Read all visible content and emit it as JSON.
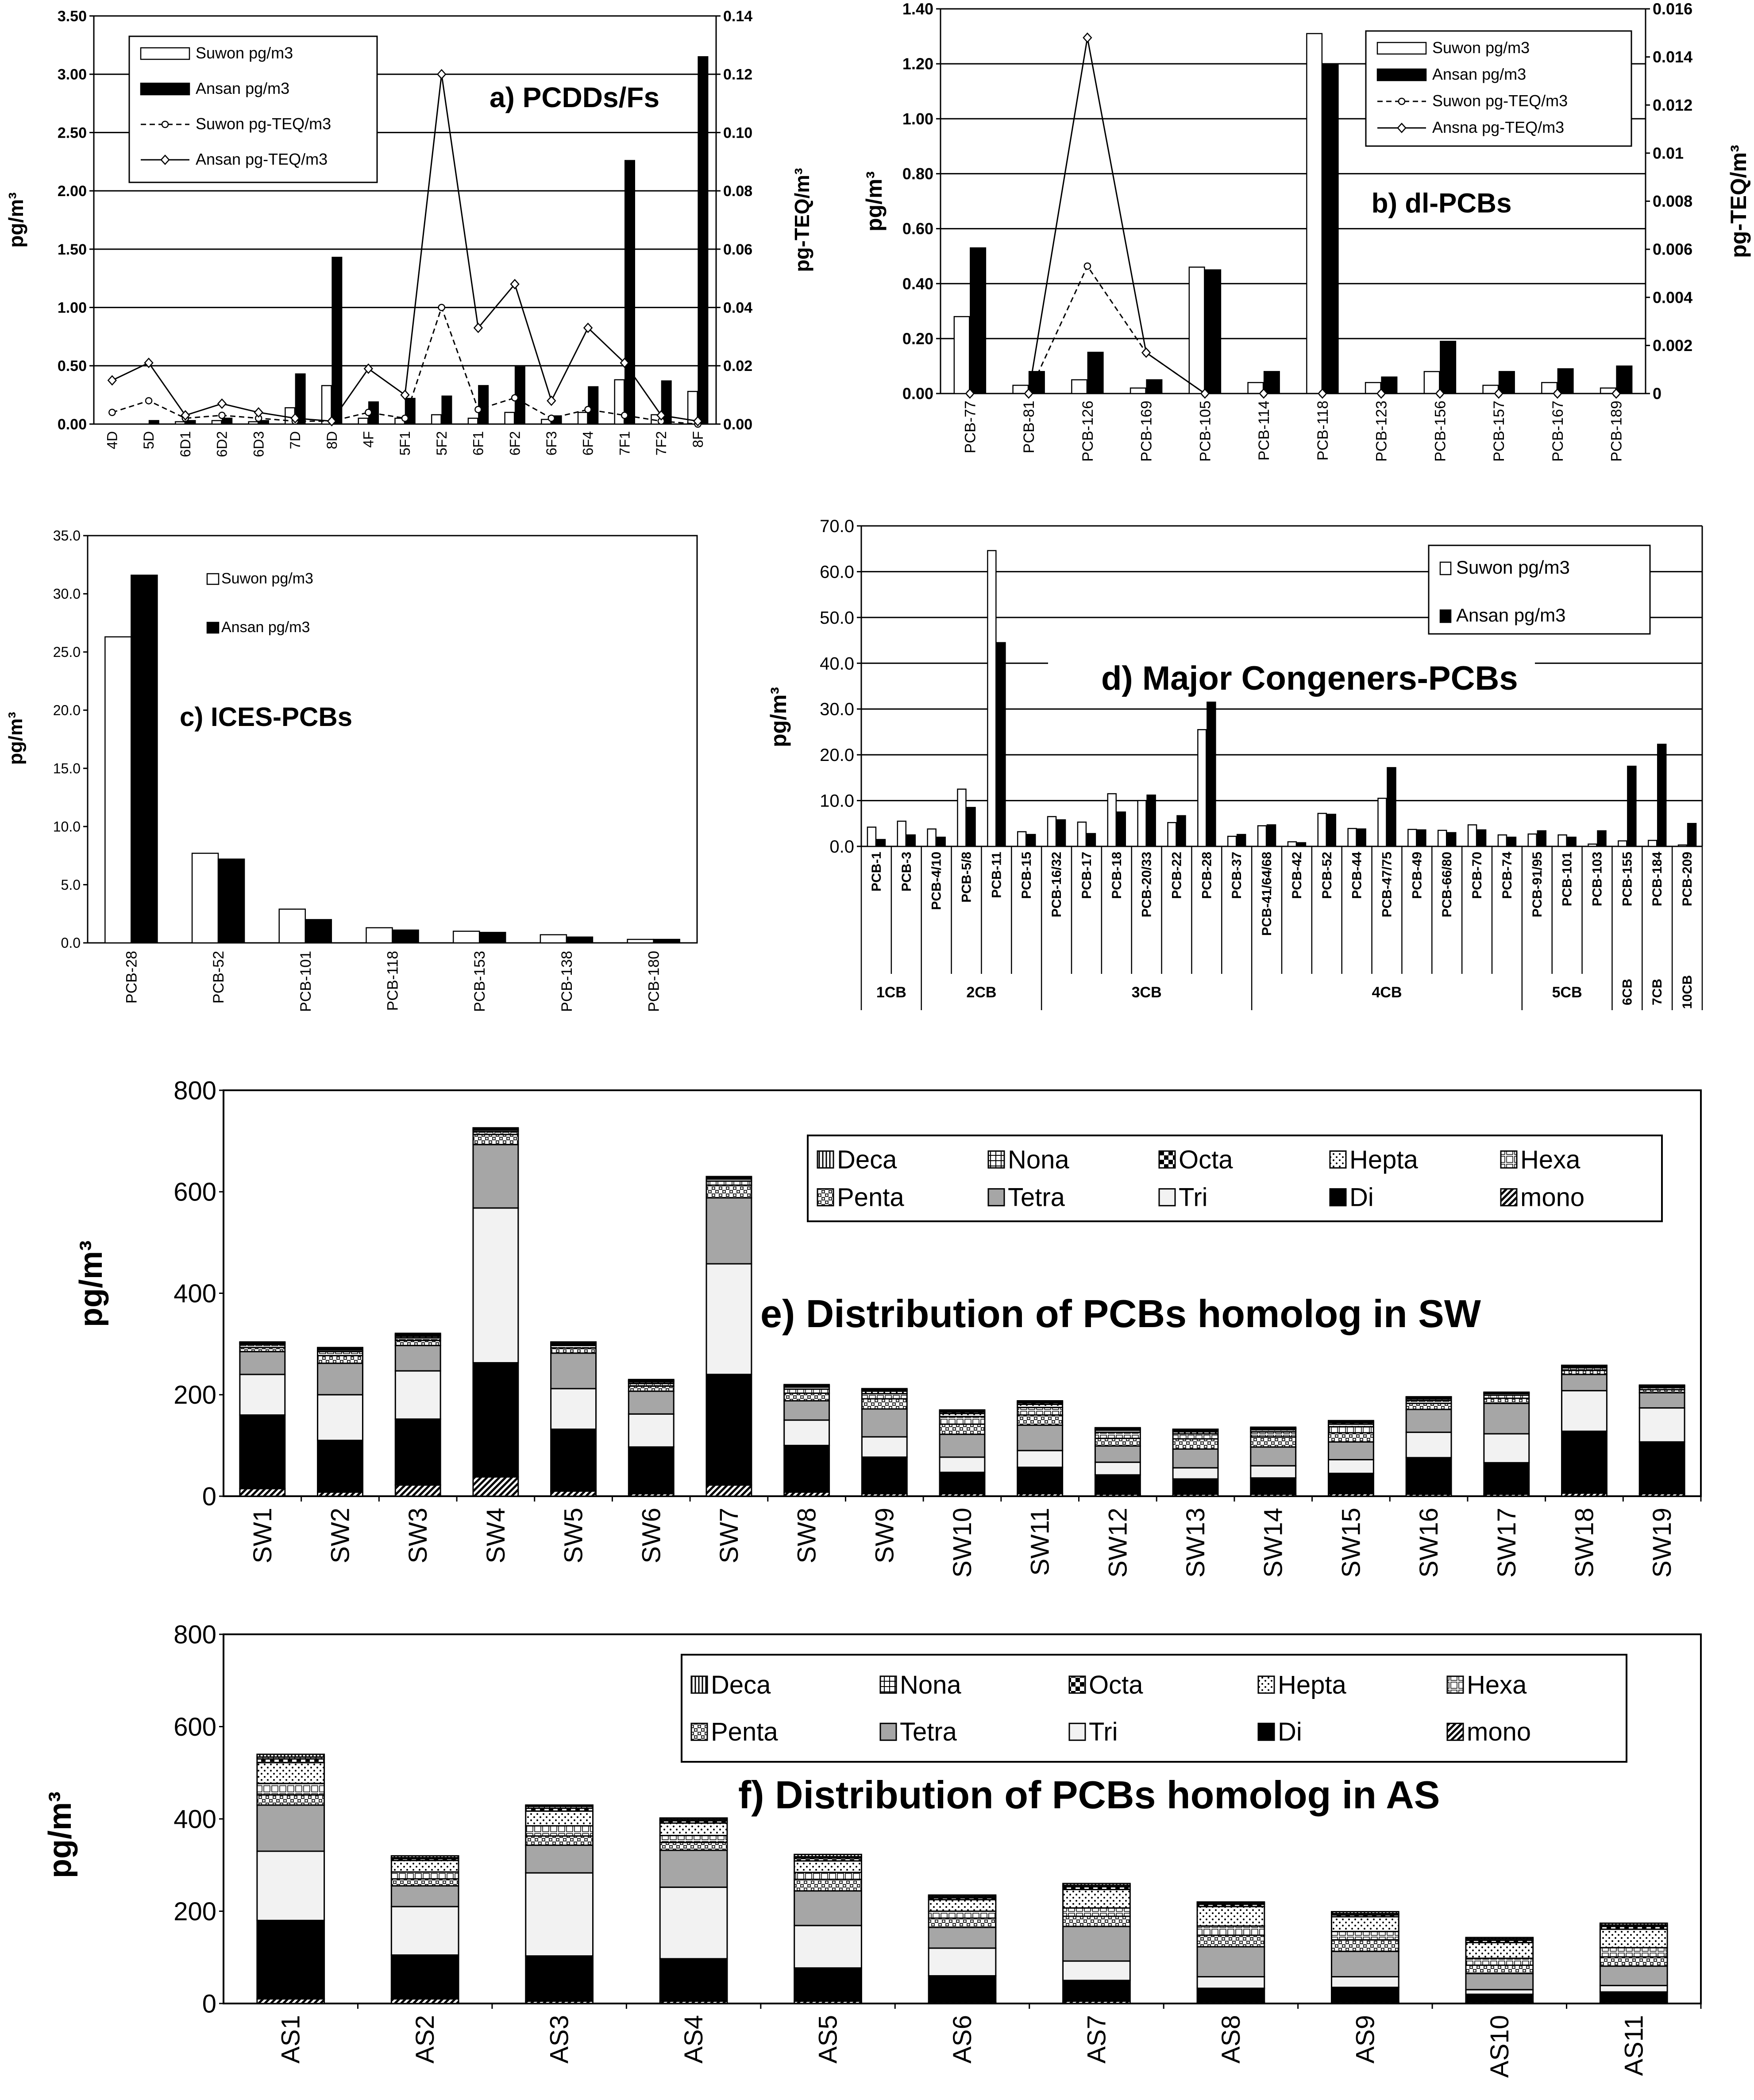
{
  "figure": {
    "panel_count": 6
  },
  "chart_data": [
    {
      "id": "a",
      "type": "bar",
      "title": "a) PCDDs/Fs",
      "categories": [
        "4D",
        "5D",
        "6D1",
        "6D2",
        "6D3",
        "7D",
        "8D",
        "4F",
        "5F1",
        "5F2",
        "6F1",
        "6F2",
        "6F3",
        "6F4",
        "7F1",
        "7F2",
        "8F"
      ],
      "series": [
        {
          "name": "Suwon pg/m3",
          "kind": "bar",
          "axis": "left",
          "values": [
            0,
            0,
            0.02,
            0.03,
            0.02,
            0.14,
            0.33,
            0.05,
            0.05,
            0.08,
            0.05,
            0.1,
            0.04,
            0.1,
            0.38,
            0.08,
            0.28
          ]
        },
        {
          "name": "Ansan pg/m3",
          "kind": "bar",
          "axis": "left",
          "values": [
            0,
            0.03,
            0.03,
            0.05,
            0.03,
            0.43,
            1.43,
            0.19,
            0.22,
            0.24,
            0.33,
            0.49,
            0.07,
            0.32,
            2.26,
            0.37,
            3.15
          ]
        },
        {
          "name": "Suwon pg-TEQ/m3",
          "kind": "line",
          "dash": true,
          "axis": "right",
          "values": [
            0.004,
            0.008,
            0.002,
            0.003,
            0.002,
            0.001,
            0.001,
            0.004,
            0.002,
            0.04,
            0.005,
            0.009,
            0.002,
            0.005,
            0.003,
            0.001,
            0.0
          ]
        },
        {
          "name": "Ansan pg-TEQ/m3",
          "kind": "line",
          "dash": false,
          "axis": "right",
          "values": [
            0.015,
            0.021,
            0.003,
            0.007,
            0.004,
            0.002,
            0.001,
            0.019,
            0.01,
            0.12,
            0.033,
            0.048,
            0.008,
            0.033,
            0.021,
            0.003,
            0.001
          ]
        }
      ],
      "ylabel": "pg/m³",
      "y2label": "pg-TEQ/m³",
      "ylim": [
        0,
        3.5
      ],
      "yticks": [
        0,
        0.5,
        1.0,
        1.5,
        2.0,
        2.5,
        3.0,
        3.5
      ],
      "ytick_labels": [
        "0.00",
        "0.50",
        "1.00",
        "1.50",
        "2.00",
        "2.50",
        "3.00",
        "3.50"
      ],
      "y2lim": [
        0,
        0.14
      ],
      "y2ticks": [
        0,
        0.02,
        0.04,
        0.06,
        0.08,
        0.1,
        0.12,
        0.14
      ],
      "y2tick_labels": [
        "0.00",
        "0.02",
        "0.04",
        "0.06",
        "0.08",
        "0.10",
        "0.12",
        "0.14"
      ],
      "legend": "top-left"
    },
    {
      "id": "b",
      "type": "bar",
      "title": "b) dl-PCBs",
      "categories": [
        "PCB-77",
        "PCB-81",
        "PCB-126",
        "PCB-169",
        "PCB-105",
        "PCB-114",
        "PCB-118",
        "PCB-123",
        "PCB-156",
        "PCB-157",
        "PCB-167",
        "PCB-189"
      ],
      "series": [
        {
          "name": "Suwon pg/m3",
          "kind": "bar",
          "axis": "left",
          "values": [
            0.28,
            0.03,
            0.05,
            0.02,
            0.46,
            0.04,
            1.31,
            0.04,
            0.08,
            0.03,
            0.04,
            0.02
          ]
        },
        {
          "name": "Ansan pg/m3",
          "kind": "bar",
          "axis": "left",
          "values": [
            0.53,
            0.08,
            0.15,
            0.05,
            0.45,
            0.08,
            1.2,
            0.06,
            0.19,
            0.08,
            0.09,
            0.1
          ]
        },
        {
          "name": "Suwon pg-TEQ/m3",
          "kind": "line",
          "dash": true,
          "axis": "right",
          "values": [
            0,
            0,
            0.0053,
            0.0017,
            0,
            0,
            0,
            0,
            0,
            0,
            0,
            0
          ]
        },
        {
          "name": "Ansna pg-TEQ/m3",
          "kind": "line",
          "dash": false,
          "axis": "right",
          "values": [
            0,
            0,
            0.0148,
            0.0017,
            0,
            0,
            0,
            0,
            0,
            0,
            0,
            0
          ]
        }
      ],
      "ylabel": "pg/m³",
      "y2label": "pg-TEQ/m³",
      "ylim": [
        0,
        1.4
      ],
      "yticks": [
        0,
        0.2,
        0.4,
        0.6,
        0.8,
        1.0,
        1.2,
        1.4
      ],
      "ytick_labels": [
        "0.00",
        "0.20",
        "0.40",
        "0.60",
        "0.80",
        "1.00",
        "1.20",
        "1.40"
      ],
      "y2lim": [
        0,
        0.016
      ],
      "y2ticks": [
        0,
        0.002,
        0.004,
        0.006,
        0.008,
        0.01,
        0.012,
        0.014,
        0.016
      ],
      "y2tick_labels": [
        "0",
        "0.002",
        "0.004",
        "0.006",
        "0.008",
        "0.01",
        "0.012",
        "0.014",
        "0.016"
      ],
      "legend": "top-right"
    },
    {
      "id": "c",
      "type": "bar",
      "title": "c) ICES-PCBs",
      "categories": [
        "PCB-28",
        "PCB-52",
        "PCB-101",
        "PCB-118",
        "PCB-153",
        "PCB-138",
        "PCB-180"
      ],
      "series": [
        {
          "name": "Suwon pg/m3",
          "kind": "bar",
          "values": [
            26.3,
            7.7,
            2.9,
            1.3,
            1.0,
            0.7,
            0.3
          ]
        },
        {
          "name": "Ansan pg/m3",
          "kind": "bar",
          "values": [
            31.6,
            7.2,
            2.0,
            1.1,
            0.9,
            0.5,
            0.3
          ]
        }
      ],
      "ylabel": "pg/m³",
      "ylim": [
        0,
        35
      ],
      "yticks": [
        0,
        5,
        10,
        15,
        20,
        25,
        30,
        35
      ],
      "ytick_labels": [
        "0.0",
        "5.0",
        "10.0",
        "15.0",
        "20.0",
        "25.0",
        "30.0",
        "35.0"
      ],
      "legend": "top-center"
    },
    {
      "id": "d",
      "type": "bar",
      "title": "d) Major Congeners-PCBs",
      "categories": [
        "PCB-1",
        "PCB-3",
        "PCB-4/10",
        "PCB-5/8",
        "PCB-11",
        "PCB-15",
        "PCB-16/32",
        "PCB-17",
        "PCB-18",
        "PCB-20/33",
        "PCB-22",
        "PCB-28",
        "PCB-37",
        "PCB-41/64/68",
        "PCB-42",
        "PCB-52",
        "PCB-44",
        "PCB-47/75",
        "PCB-49",
        "PCB-66/80",
        "PCB-70",
        "PCB-74",
        "PCB-91/95",
        "PCB-101",
        "PCB-103",
        "PCB-155",
        "PCB-184",
        "PCB-209"
      ],
      "groups": [
        {
          "label": "1CB",
          "count": 2
        },
        {
          "label": "2CB",
          "count": 4
        },
        {
          "label": "3CB",
          "count": 7
        },
        {
          "label": "4CB",
          "count": 9
        },
        {
          "label": "5CB",
          "count": 3
        },
        {
          "label": "6CB",
          "count": 1
        },
        {
          "label": "7CB",
          "count": 1
        },
        {
          "label": "10CB",
          "count": 1
        }
      ],
      "series": [
        {
          "name": "Suwon pg/m3",
          "kind": "bar",
          "values": [
            4.2,
            5.5,
            3.8,
            12.5,
            64.6,
            3.2,
            6.5,
            5.3,
            11.5,
            10.0,
            5.2,
            25.5,
            2.2,
            4.5,
            1.0,
            7.2,
            3.9,
            10.5,
            3.7,
            3.5,
            4.7,
            2.5,
            2.7,
            2.5,
            0.5,
            1.2,
            1.3,
            0.3
          ]
        },
        {
          "name": "Ansan pg/m3",
          "kind": "bar",
          "values": [
            1.5,
            2.5,
            2.0,
            8.5,
            44.5,
            2.6,
            5.8,
            2.8,
            7.5,
            11.2,
            6.7,
            31.5,
            2.6,
            4.7,
            0.8,
            7.0,
            3.8,
            17.2,
            3.6,
            3.0,
            3.6,
            2.0,
            3.4,
            2.0,
            3.4,
            17.5,
            22.3,
            5.0
          ]
        }
      ],
      "ylabel": "pg/m³",
      "ylim": [
        0,
        70
      ],
      "yticks": [
        0,
        10,
        20,
        30,
        40,
        50,
        60,
        70
      ],
      "ytick_labels": [
        "0.0",
        "10.0",
        "20.0",
        "30.0",
        "40.0",
        "50.0",
        "60.0",
        "70.0"
      ],
      "legend": "top-right"
    },
    {
      "id": "e",
      "type": "bar",
      "stacked": true,
      "title": "e) Distribution of PCBs homolog in SW",
      "categories": [
        "SW1",
        "SW2",
        "SW3",
        "SW4",
        "SW5",
        "SW6",
        "SW7",
        "SW8",
        "SW9",
        "SW10",
        "SW11",
        "SW12",
        "SW13",
        "SW14",
        "SW15",
        "SW16",
        "SW17",
        "SW18",
        "SW19"
      ],
      "series": [
        {
          "name": "mono",
          "values": [
            15,
            8,
            22,
            38,
            10,
            5,
            22,
            8,
            5,
            5,
            5,
            4,
            4,
            4,
            5,
            4,
            4,
            6,
            5
          ]
        },
        {
          "name": "Di",
          "values": [
            145,
            102,
            130,
            225,
            122,
            92,
            218,
            92,
            72,
            42,
            52,
            38,
            30,
            32,
            40,
            72,
            62,
            122,
            102
          ]
        },
        {
          "name": "Tri",
          "values": [
            80,
            90,
            95,
            305,
            80,
            65,
            218,
            50,
            40,
            30,
            33,
            25,
            22,
            24,
            27,
            50,
            57,
            80,
            67
          ]
        },
        {
          "name": "Tetra",
          "values": [
            45,
            62,
            50,
            125,
            70,
            45,
            130,
            38,
            55,
            45,
            50,
            32,
            37,
            37,
            35,
            45,
            60,
            32,
            30
          ]
        },
        {
          "name": "Penta",
          "values": [
            8,
            15,
            10,
            20,
            10,
            10,
            25,
            15,
            20,
            20,
            20,
            15,
            20,
            20,
            18,
            12,
            10,
            8,
            6
          ]
        },
        {
          "name": "Hexa",
          "values": [
            6,
            8,
            5,
            6,
            5,
            5,
            8,
            8,
            10,
            15,
            15,
            12,
            10,
            10,
            12,
            6,
            6,
            5,
            4
          ]
        },
        {
          "name": "Hepta",
          "values": [
            2,
            3,
            3,
            3,
            2,
            3,
            4,
            4,
            5,
            6,
            6,
            4,
            4,
            4,
            5,
            3,
            3,
            2,
            2
          ]
        },
        {
          "name": "Octa",
          "values": [
            1,
            2,
            2,
            1,
            2,
            2,
            2,
            2,
            2,
            3,
            3,
            2,
            2,
            2,
            3,
            2,
            1,
            1,
            1
          ]
        },
        {
          "name": "Nona",
          "values": [
            1,
            1,
            2,
            1,
            1,
            1,
            1,
            1,
            1,
            2,
            2,
            1,
            1,
            1,
            2,
            1,
            1,
            1,
            1
          ]
        },
        {
          "name": "Deca",
          "values": [
            1,
            2,
            2,
            2,
            2,
            2,
            2,
            2,
            2,
            2,
            2,
            2,
            2,
            2,
            2,
            1,
            1,
            1,
            1
          ]
        }
      ],
      "legend_order": [
        "Deca",
        "Nona",
        "Octa",
        "Hepta",
        "Hexa",
        "Penta",
        "Tetra",
        "Tri",
        "Di",
        "mono"
      ],
      "ylabel": "pg/m³",
      "ylim": [
        0,
        800
      ],
      "yticks": [
        0,
        200,
        400,
        600,
        800
      ],
      "ytick_labels": [
        "0",
        "200",
        "400",
        "600",
        "800"
      ],
      "legend": "top-right"
    },
    {
      "id": "f",
      "type": "bar",
      "stacked": true,
      "title": "f) Distribution of PCBs homolog in AS",
      "categories": [
        "AS1",
        "AS2",
        "AS3",
        "AS4",
        "AS5",
        "AS6",
        "AS7",
        "AS8",
        "AS9",
        "AS10",
        "AS11"
      ],
      "series": [
        {
          "name": "mono",
          "values": [
            10,
            10,
            5,
            5,
            5,
            3,
            5,
            3,
            3,
            3,
            3
          ]
        },
        {
          "name": "Di",
          "values": [
            170,
            95,
            98,
            92,
            72,
            57,
            45,
            30,
            32,
            17,
            22
          ]
        },
        {
          "name": "Tri",
          "values": [
            150,
            105,
            180,
            155,
            92,
            60,
            42,
            25,
            23,
            10,
            14
          ]
        },
        {
          "name": "Tetra",
          "values": [
            100,
            45,
            60,
            80,
            75,
            45,
            75,
            65,
            55,
            35,
            42
          ]
        },
        {
          "name": "Penta",
          "values": [
            22,
            15,
            20,
            17,
            25,
            20,
            22,
            25,
            25,
            18,
            20
          ]
        },
        {
          "name": "Hexa",
          "values": [
            25,
            15,
            22,
            15,
            15,
            15,
            18,
            20,
            18,
            15,
            20
          ]
        },
        {
          "name": "Hepta",
          "values": [
            45,
            25,
            32,
            27,
            25,
            25,
            40,
            42,
            32,
            34,
            40
          ]
        },
        {
          "name": "Octa",
          "values": [
            8,
            4,
            6,
            5,
            6,
            4,
            6,
            5,
            4,
            5,
            6
          ]
        },
        {
          "name": "Nona",
          "values": [
            4,
            2,
            4,
            3,
            3,
            3,
            3,
            3,
            3,
            3,
            3
          ]
        },
        {
          "name": "Deca",
          "values": [
            6,
            4,
            3,
            3,
            5,
            3,
            4,
            2,
            4,
            3,
            4
          ]
        }
      ],
      "legend_order": [
        "Deca",
        "Nona",
        "Octa",
        "Hepta",
        "Hexa",
        "Penta",
        "Tetra",
        "Tri",
        "Di",
        "mono"
      ],
      "ylabel": "pg/m³",
      "ylim": [
        0,
        800
      ],
      "yticks": [
        0,
        200,
        400,
        600,
        800
      ],
      "ytick_labels": [
        "0",
        "200",
        "400",
        "600",
        "800"
      ],
      "legend": "top-right"
    }
  ]
}
